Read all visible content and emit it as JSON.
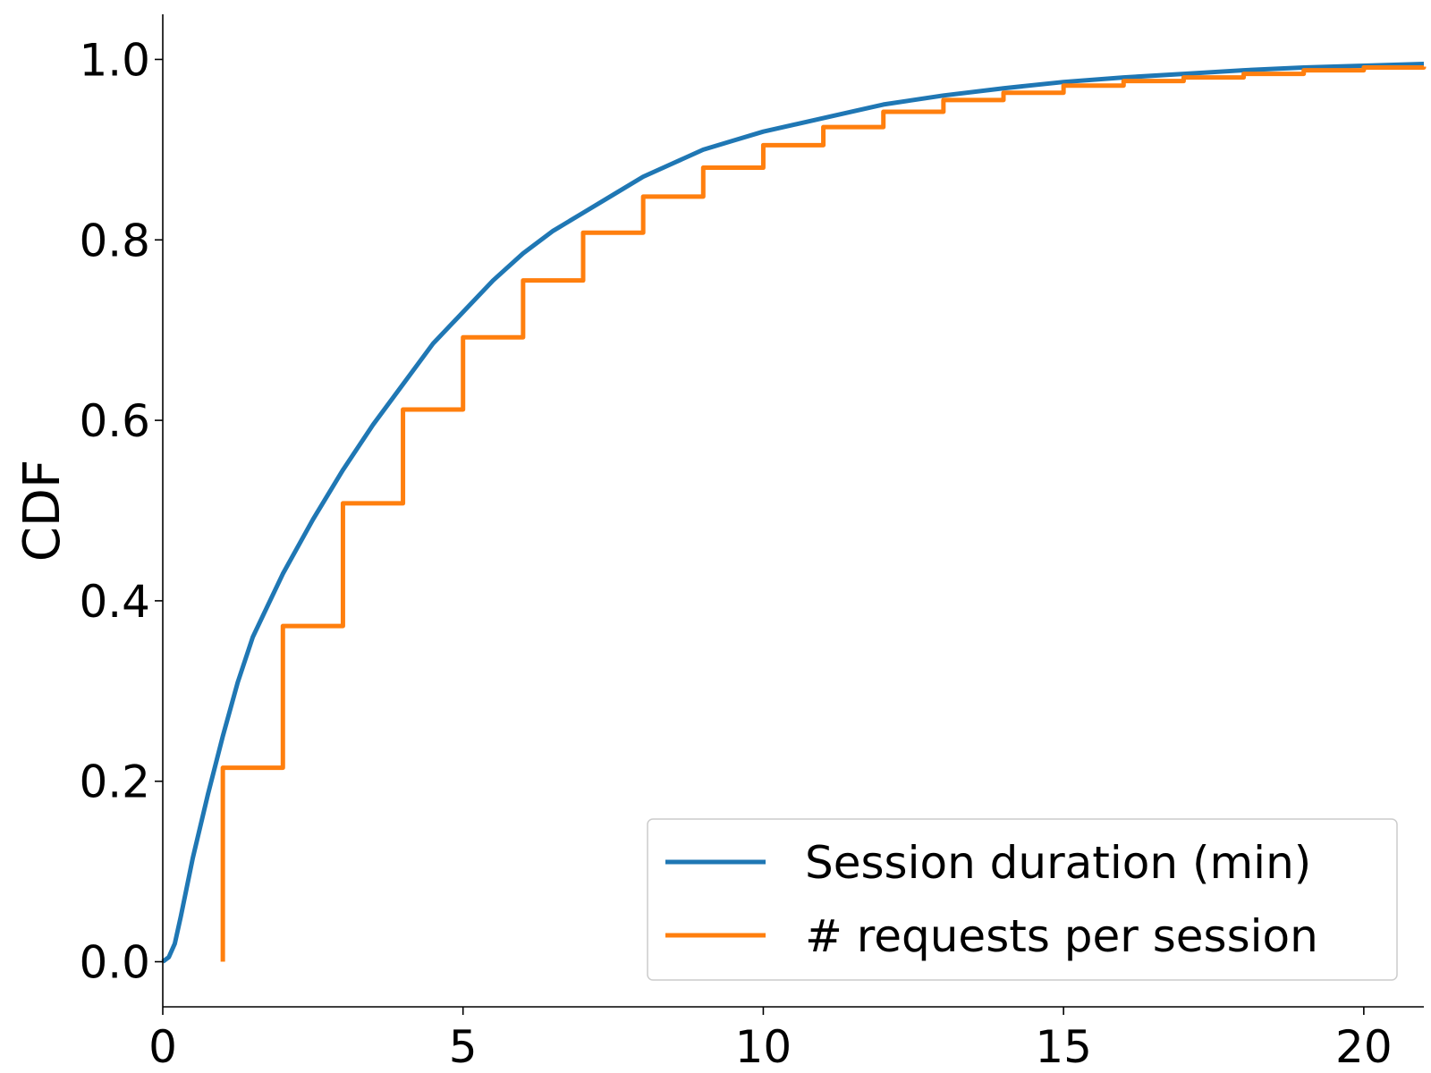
{
  "chart_data": {
    "type": "line",
    "title": "",
    "xlabel": "",
    "ylabel": "CDF",
    "xlim": [
      0,
      21
    ],
    "ylim": [
      -0.05,
      1.05
    ],
    "xticks": [
      0,
      5,
      10,
      15,
      20
    ],
    "yticks": [
      0.0,
      0.2,
      0.4,
      0.6,
      0.8,
      1.0
    ],
    "xtick_labels": [
      "0",
      "5",
      "10",
      "15",
      "20"
    ],
    "ytick_labels": [
      "0.0",
      "0.2",
      "0.4",
      "0.6",
      "0.8",
      "1.0"
    ],
    "grid": false,
    "legend": {
      "position": "bottom-right"
    },
    "series": [
      {
        "name": "Session duration (min)",
        "color": "#1f77b4",
        "style": "line",
        "x": [
          0,
          0.1,
          0.2,
          0.3,
          0.5,
          0.75,
          1.0,
          1.25,
          1.5,
          1.75,
          2.0,
          2.5,
          3.0,
          3.5,
          4.0,
          4.5,
          5.0,
          5.5,
          6.0,
          6.5,
          7.0,
          7.5,
          8.0,
          8.5,
          9.0,
          9.5,
          10.0,
          11.0,
          12.0,
          13.0,
          14.0,
          15.0,
          16.0,
          17.0,
          18.0,
          19.0,
          20.0,
          21.0
        ],
        "y": [
          0.0,
          0.005,
          0.02,
          0.05,
          0.115,
          0.185,
          0.25,
          0.31,
          0.36,
          0.395,
          0.43,
          0.49,
          0.545,
          0.595,
          0.64,
          0.685,
          0.72,
          0.755,
          0.785,
          0.81,
          0.83,
          0.85,
          0.87,
          0.885,
          0.9,
          0.91,
          0.92,
          0.935,
          0.95,
          0.96,
          0.968,
          0.975,
          0.98,
          0.984,
          0.988,
          0.991,
          0.993,
          0.995
        ]
      },
      {
        "name": "# requests per session",
        "color": "#ff7f0e",
        "style": "step",
        "x": [
          1,
          2,
          3,
          4,
          5,
          6,
          7,
          8,
          9,
          10,
          11,
          12,
          13,
          14,
          15,
          16,
          17,
          18,
          19,
          20,
          21
        ],
        "y": [
          0.215,
          0.372,
          0.508,
          0.612,
          0.692,
          0.755,
          0.808,
          0.848,
          0.88,
          0.905,
          0.925,
          0.942,
          0.955,
          0.963,
          0.971,
          0.976,
          0.98,
          0.984,
          0.988,
          0.991,
          0.992
        ]
      }
    ]
  }
}
